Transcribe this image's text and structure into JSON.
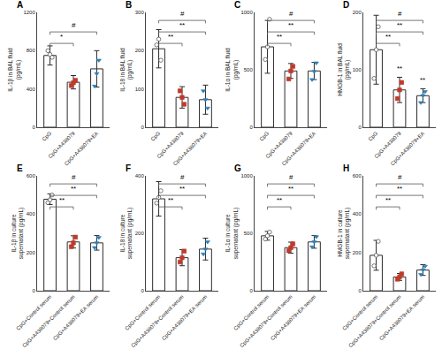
{
  "chart_data": [
    {
      "type": "bar",
      "title": "A",
      "ylabel": "IL-1β in BAL fluid\n(pg/mL)",
      "categories": [
        "CpG",
        "CpG+A438079",
        "CpG+A438079+EA"
      ],
      "values": [
        750,
        470,
        610
      ],
      "errors": [
        100,
        70,
        190
      ],
      "color": "#ffffff",
      "points": [
        {
          "values": [
            800,
            760,
            730
          ],
          "color": "#ffffff",
          "marker": "circle"
        },
        {
          "values": [
            435,
            465,
            490
          ],
          "color": "#c0392b",
          "marker": "square"
        },
        {
          "values": [
            430,
            560,
            700
          ],
          "color": "#2980b9",
          "marker": "triangle-down"
        }
      ],
      "annotations": [
        {
          "text": "*",
          "from": "CpG",
          "to": "CpG+A438079"
        },
        {
          "text": "#",
          "from": "CpG",
          "to": "CpG+A438079+EA"
        }
      ],
      "ylim": [
        0,
        1200
      ],
      "yticks": [
        0,
        400,
        800,
        1200
      ],
      "grid": false
    },
    {
      "type": "bar",
      "title": "B",
      "ylabel": "IL-18 in BAL fluid\n(pg/mL)",
      "categories": [
        "CpG",
        "CpG+A438079",
        "CpG+A438079+EA"
      ],
      "values": [
        205,
        78,
        72
      ],
      "errors": [
        50,
        28,
        38
      ],
      "color": "#ffffff",
      "points": [
        {
          "values": [
            215,
            230,
            175
          ],
          "color": "#ffffff",
          "marker": "circle"
        },
        {
          "values": [
            95,
            78,
            60
          ],
          "color": "#c0392b",
          "marker": "square"
        },
        {
          "values": [
            95,
            72,
            50
          ],
          "color": "#2980b9",
          "marker": "triangle-down"
        }
      ],
      "annotations": [
        {
          "text": "**",
          "from": "CpG",
          "to": "CpG+A438079"
        },
        {
          "text": "**",
          "from": "CpG",
          "to": "CpG+A438079+EA"
        },
        {
          "text": "#",
          "from": "CpG",
          "to": "CpG+A438079+EA"
        }
      ],
      "ylim": [
        0,
        300
      ],
      "yticks": [
        0,
        100,
        200,
        300
      ],
      "grid": false
    },
    {
      "type": "bar",
      "title": "C",
      "ylabel": "IL-1α in BAL fluid\n(pg/mL)",
      "categories": [
        "CpG",
        "CpG+A438079",
        "CpG+A438079+EA"
      ],
      "values": [
        700,
        490,
        490
      ],
      "errors": [
        230,
        65,
        75
      ],
      "color": "#ffffff",
      "points": [
        {
          "values": [
            590,
            700,
            940
          ],
          "color": "#ffffff",
          "marker": "circle"
        },
        {
          "values": [
            420,
            490,
            530
          ],
          "color": "#c0392b",
          "marker": "square"
        },
        {
          "values": [
            415,
            485,
            560
          ],
          "color": "#2980b9",
          "marker": "triangle-down"
        }
      ],
      "annotations": [
        {
          "text": "**",
          "from": "CpG",
          "to": "CpG+A438079"
        },
        {
          "text": "**",
          "from": "CpG",
          "to": "CpG+A438079+EA"
        },
        {
          "text": "#",
          "from": "CpG",
          "to": "CpG+A438079+EA"
        }
      ],
      "ylim": [
        0,
        1000
      ],
      "yticks": [
        0,
        500,
        1000
      ],
      "grid": false
    },
    {
      "type": "bar",
      "title": "D",
      "ylabel": "HMGB-1 in BAL fluid\n(pg/mL)",
      "categories": [
        "CpG",
        "CpG+A438079",
        "CpG+A438079+EA"
      ],
      "values": [
        135,
        65,
        55
      ],
      "errors": [
        60,
        22,
        12
      ],
      "color": "#ffffff",
      "points": [
        {
          "values": [
            85,
            135,
            175
          ],
          "color": "#ffffff",
          "marker": "circle"
        },
        {
          "values": [
            50,
            65,
            78
          ],
          "color": "#c0392b",
          "marker": "square"
        },
        {
          "values": [
            43,
            55,
            62
          ],
          "color": "#2980b9",
          "marker": "triangle-down"
        }
      ],
      "annotations": [
        {
          "text": "**",
          "from": "CpG",
          "to": "CpG+A438079"
        },
        {
          "text": "**",
          "from": "CpG",
          "to": "CpG+A438079+EA"
        },
        {
          "text": "#",
          "from": "CpG",
          "to": "CpG+A438079+EA"
        },
        {
          "text": "**",
          "at": "CpG+A438079"
        },
        {
          "text": "**",
          "at": "CpG+A438079+EA"
        }
      ],
      "ylim": [
        0,
        200
      ],
      "yticks": [
        0,
        100,
        200
      ],
      "grid": false
    },
    {
      "type": "bar",
      "title": "E",
      "ylabel": "IL-1β in culture\nsupernatant (pg/mL)",
      "categories": [
        "CpG+Control serum",
        "CpG+A438079+Control serum",
        "CpG+A438079+EA serum"
      ],
      "values": [
        478,
        255,
        250
      ],
      "errors": [
        28,
        32,
        38
      ],
      "color": "#ffffff",
      "points": [
        {
          "values": [
            460,
            475,
            500
          ],
          "color": "#ffffff",
          "marker": "circle"
        },
        {
          "values": [
            230,
            250,
            280
          ],
          "color": "#c0392b",
          "marker": "square"
        },
        {
          "values": [
            225,
            250,
            278
          ],
          "color": "#2980b9",
          "marker": "triangle-down"
        }
      ],
      "annotations": [
        {
          "text": "**",
          "from": "CpG+Control serum",
          "to": "CpG+A438079+Control serum"
        },
        {
          "text": "**",
          "from": "CpG+Control serum",
          "to": "CpG+A438079+EA serum"
        },
        {
          "text": "#",
          "from": "CpG+Control serum",
          "to": "CpG+A438079+EA serum"
        }
      ],
      "ylim": [
        0,
        600
      ],
      "yticks": [
        0,
        200,
        400,
        600
      ],
      "grid": false
    },
    {
      "type": "bar",
      "title": "F",
      "ylabel": "IL-18 in culture\nsupernatant (pg/mL)",
      "categories": [
        "CpG+Control serum",
        "CpG+A438079+Control serum",
        "CpG+A438079+EA serum"
      ],
      "values": [
        320,
        115,
        145
      ],
      "errors": [
        60,
        28,
        38
      ],
      "color": "#ffffff",
      "points": [
        {
          "values": [
            305,
            325,
            348
          ],
          "color": "#ffffff",
          "marker": "circle"
        },
        {
          "values": [
            100,
            115,
            138
          ],
          "color": "#c0392b",
          "marker": "square"
        },
        {
          "values": [
            128,
            145,
            170
          ],
          "color": "#2980b9",
          "marker": "triangle-down"
        }
      ],
      "annotations": [
        {
          "text": "**",
          "from": "CpG+Control serum",
          "to": "CpG+A438079+Control serum"
        },
        {
          "text": "**",
          "from": "CpG+Control serum",
          "to": "CpG+A438079+EA serum"
        },
        {
          "text": "#",
          "from": "CpG+Control serum",
          "to": "CpG+A438079+EA serum"
        }
      ],
      "ylim": [
        0,
        400
      ],
      "yticks": [
        0,
        200,
        400
      ],
      "grid": false
    },
    {
      "type": "bar",
      "title": "G",
      "ylabel": "IL-1α in culture\nsupernatant (pg/mL)",
      "categories": [
        "CpG+Control serum",
        "CpG+A438079+Control serum",
        "CpG+A438079+EA serum"
      ],
      "values": [
        478,
        375,
        425
      ],
      "errors": [
        38,
        48,
        55
      ],
      "color": "#ffffff",
      "points": [
        {
          "values": [
            450,
            478,
            510
          ],
          "color": "#ffffff",
          "marker": "circle"
        },
        {
          "values": [
            348,
            375,
            408
          ],
          "color": "#c0392b",
          "marker": "square"
        },
        {
          "values": [
            382,
            425,
            470
          ],
          "color": "#2980b9",
          "marker": "triangle-down"
        }
      ],
      "annotations": [
        {
          "text": "**",
          "from": "CpG+Control serum",
          "to": "CpG+A438079+Control serum"
        },
        {
          "text": "**",
          "from": "CpG+Control serum",
          "to": "CpG+A438079+EA serum"
        },
        {
          "text": "#",
          "from": "CpG+Control serum",
          "to": "CpG+A438079+EA serum"
        }
      ],
      "ylim": [
        0,
        1000
      ],
      "yticks": [
        0,
        500,
        1000
      ],
      "grid": false
    },
    {
      "type": "bar",
      "title": "H",
      "ylabel": "HMGB-1 in culture\nsupernatant (pg/mL)",
      "categories": [
        "CpG+Control serum",
        "CpG+A438079+Control serum",
        "CpG+A438079+EA serum"
      ],
      "values": [
        185,
        72,
        108
      ],
      "errors": [
        78,
        18,
        28
      ],
      "color": "#ffffff",
      "points": [
        {
          "values": [
            130,
            185,
            258
          ],
          "color": "#ffffff",
          "marker": "circle"
        },
        {
          "values": [
            60,
            72,
            88
          ],
          "color": "#c0392b",
          "marker": "square"
        },
        {
          "values": [
            85,
            108,
            128
          ],
          "color": "#2980b9",
          "marker": "triangle-down"
        }
      ],
      "annotations": [
        {
          "text": "**",
          "from": "CpG+Control serum",
          "to": "CpG+A438079+Control serum"
        },
        {
          "text": "**",
          "from": "CpG+Control serum",
          "to": "CpG+A438079+EA serum"
        },
        {
          "text": "#",
          "from": "CpG+Control serum",
          "to": "CpG+A438079+EA serum"
        }
      ],
      "ylim": [
        0,
        600
      ],
      "yticks": [
        0,
        200,
        400,
        600
      ],
      "grid": false
    }
  ]
}
